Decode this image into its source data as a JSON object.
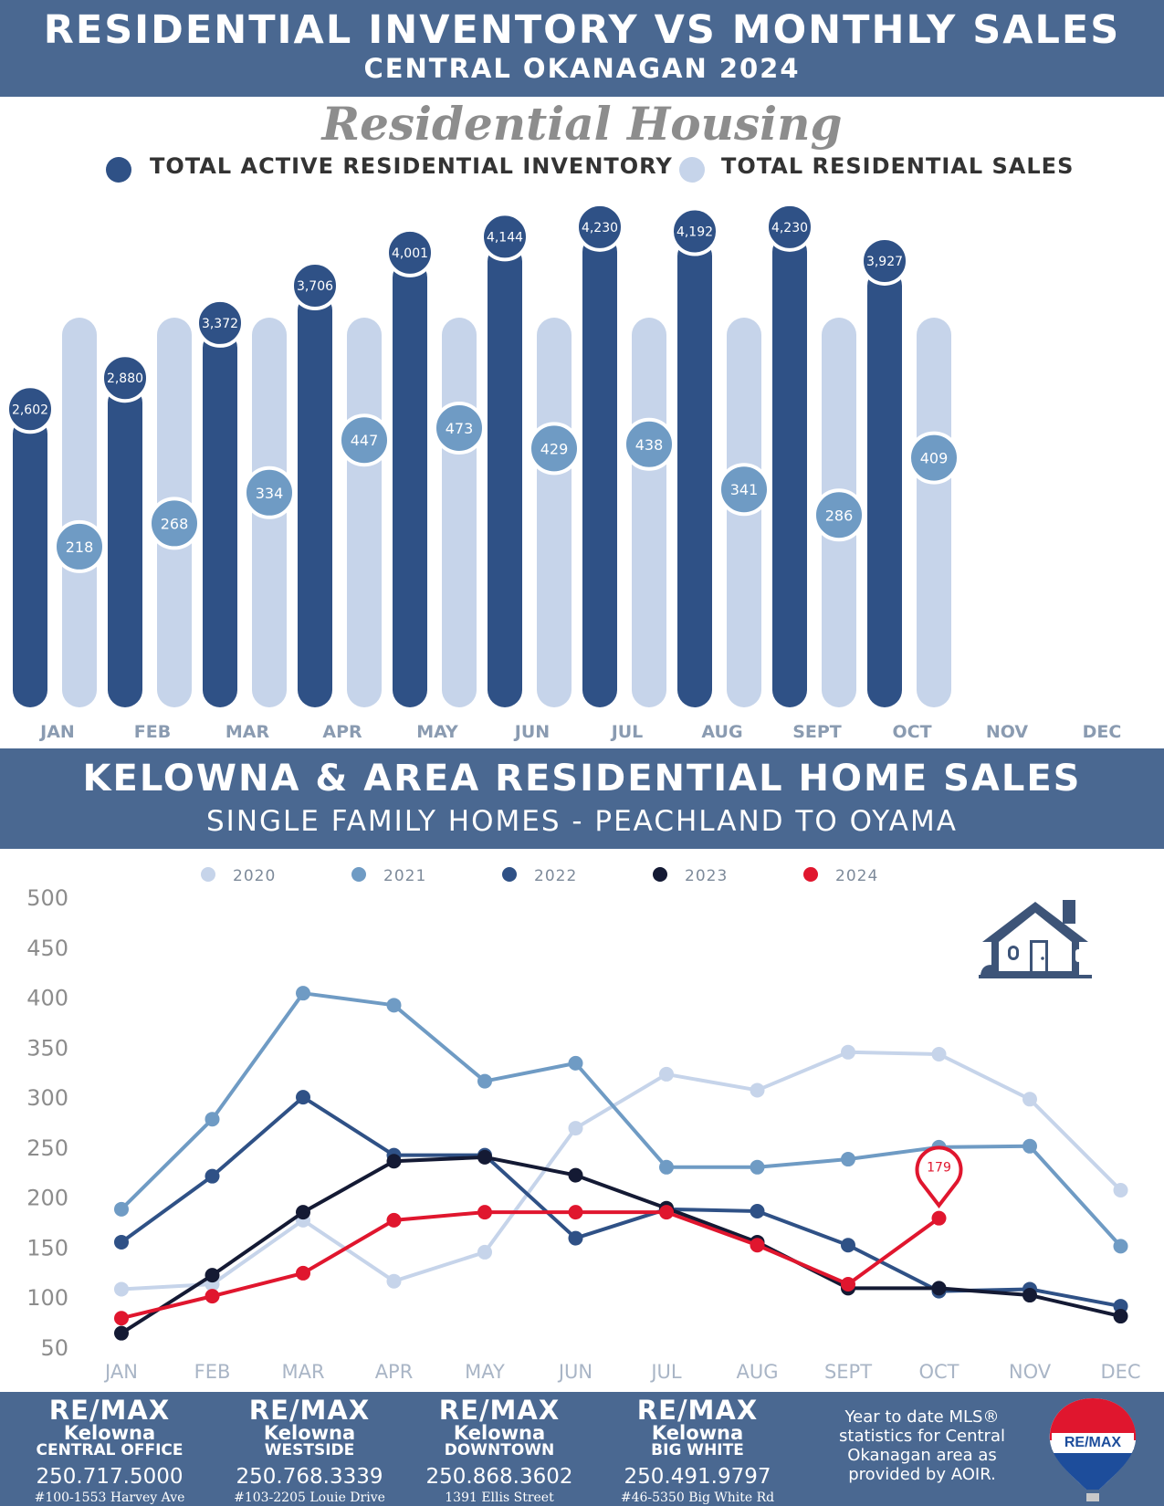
{
  "header": {
    "title": "RESIDENTIAL INVENTORY VS MONTHLY SALES",
    "subtitle": "CENTRAL OKANAGAN 2024"
  },
  "section1": {
    "script_title": "Residential Housing",
    "legend": {
      "inventory_label": "TOTAL ACTIVE RESIDENTIAL INVENTORY",
      "sales_label": "TOTAL RESIDENTIAL SALES"
    }
  },
  "section2": {
    "title": "KELOWNA & AREA RESIDENTIAL HOME SALES",
    "subtitle": "SINGLE FAMILY HOMES - PEACHLAND TO OYAMA"
  },
  "colors": {
    "band": "#4a6891",
    "inventory": "#2f5186",
    "sales_bar": "#c6d4ea",
    "sales_badge": "#6f9bc4",
    "y2020": "#c6d4ea",
    "y2021": "#6f9bc4",
    "y2022": "#2f5186",
    "y2023": "#141a34",
    "y2024": "#e0162e"
  },
  "icons": {
    "house": "house-icon",
    "balloon": "remax-balloon-icon"
  },
  "chart_data": [
    {
      "type": "bar",
      "categories": [
        "JAN",
        "FEB",
        "MAR",
        "APR",
        "MAY",
        "JUN",
        "JUL",
        "AUG",
        "SEPT",
        "OCT",
        "NOV",
        "DEC"
      ],
      "series": [
        {
          "name": "TOTAL ACTIVE RESIDENTIAL INVENTORY",
          "values": [
            2602,
            2880,
            3372,
            3706,
            4001,
            4144,
            4230,
            4192,
            4230,
            3927,
            null,
            null
          ],
          "labels": [
            "2,602",
            "2,880",
            "3,372",
            "3,706",
            "4,001",
            "4,144",
            "4,230",
            "4,192",
            "4,230",
            "3,927",
            "",
            ""
          ]
        },
        {
          "name": "TOTAL RESIDENTIAL SALES",
          "values": [
            218,
            268,
            334,
            447,
            473,
            429,
            438,
            341,
            286,
            409,
            null,
            null
          ],
          "labels": [
            "218",
            "268",
            "334",
            "447",
            "473",
            "429",
            "438",
            "341",
            "286",
            "409",
            "",
            ""
          ]
        }
      ]
    },
    {
      "type": "line",
      "categories": [
        "JAN",
        "FEB",
        "MAR",
        "APR",
        "MAY",
        "JUN",
        "JUL",
        "AUG",
        "SEPT",
        "OCT",
        "NOV",
        "DEC"
      ],
      "y_ticks": [
        50,
        100,
        150,
        200,
        250,
        300,
        350,
        400,
        450,
        500
      ],
      "ylim": [
        50,
        500
      ],
      "series": [
        {
          "name": "2020",
          "values": [
            108,
            113,
            177,
            116,
            145,
            269,
            323,
            307,
            345,
            343,
            298,
            207
          ]
        },
        {
          "name": "2021",
          "values": [
            188,
            278,
            404,
            392,
            316,
            334,
            230,
            230,
            238,
            250,
            251,
            151
          ]
        },
        {
          "name": "2022",
          "values": [
            155,
            221,
            300,
            242,
            242,
            159,
            188,
            186,
            152,
            106,
            108,
            91
          ]
        },
        {
          "name": "2023",
          "values": [
            64,
            122,
            185,
            236,
            240,
            222,
            189,
            155,
            109,
            109,
            102,
            81
          ]
        },
        {
          "name": "2024",
          "values": [
            79,
            101,
            124,
            177,
            185,
            185,
            185,
            152,
            113,
            179,
            null,
            null
          ]
        }
      ],
      "annotation": {
        "label": "179",
        "series": "2024",
        "category": "OCT"
      }
    }
  ],
  "footer": {
    "offices": [
      {
        "brand": "RE/MAX",
        "city": "Kelowna",
        "branch": "CENTRAL OFFICE",
        "phone": "250.717.5000",
        "address": "#100-1553 Harvey Ave"
      },
      {
        "brand": "RE/MAX",
        "city": "Kelowna",
        "branch": "WESTSIDE",
        "phone": "250.768.3339",
        "address": "#103-2205 Louie Drive"
      },
      {
        "brand": "RE/MAX",
        "city": "Kelowna",
        "branch": "DOWNTOWN",
        "phone": "250.868.3602",
        "address": "1391 Ellis Street"
      },
      {
        "brand": "RE/MAX",
        "city": "Kelowna",
        "branch": "BIG WHITE",
        "phone": "250.491.9797",
        "address": "#46-5350 Big White Rd"
      }
    ],
    "note": "Year to date MLS® statistics for Central Okanagan area as provided by AOIR.",
    "balloon_text": "RE/MAX"
  }
}
